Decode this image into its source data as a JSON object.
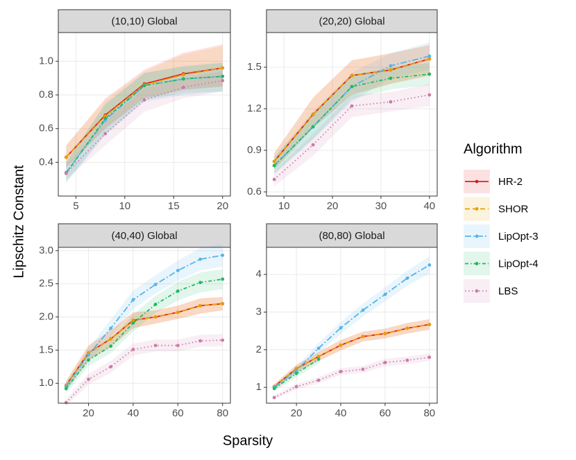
{
  "ylabel": "Lipschitz Constant",
  "xlabel": "Sparsity",
  "legend": {
    "title": "Algorithm"
  },
  "chart_data": [
    {
      "type": "line",
      "title": "(10,10) Global",
      "x": [
        4,
        8,
        12,
        16,
        20
      ],
      "xlim": [
        3.2,
        20.8
      ],
      "xticks": [
        5,
        10,
        15,
        20
      ],
      "ylim": [
        0.2,
        1.17
      ],
      "yticks": [
        0.4,
        0.6,
        0.8,
        {
          "value": 1.0,
          "label": "1.0"
        }
      ],
      "grid": true,
      "series": [
        {
          "name": "HR-2",
          "color": "#e41a1c",
          "dash": "solid",
          "values": [
            0.43,
            0.68,
            0.865,
            0.925,
            0.96
          ],
          "lower": [
            0.37,
            0.6,
            0.78,
            0.83,
            0.85
          ],
          "upper": [
            0.5,
            0.78,
            0.95,
            1.05,
            1.1
          ]
        },
        {
          "name": "SHOR",
          "color": "#e69f00",
          "dash": "dashed",
          "values": [
            0.43,
            0.675,
            0.86,
            0.92,
            0.96
          ],
          "lower": [
            0.37,
            0.6,
            0.78,
            0.83,
            0.85
          ],
          "upper": [
            0.5,
            0.77,
            0.94,
            1.04,
            1.09
          ]
        },
        {
          "name": "LipOpt-3",
          "color": "#56b4e9",
          "dash": "longdashdot",
          "values": [
            0.34,
            0.65,
            0.855,
            0.895,
            0.91
          ],
          "lower": [
            0.28,
            0.56,
            0.76,
            0.8,
            0.82
          ],
          "upper": [
            0.4,
            0.74,
            0.93,
            0.97,
            0.99
          ]
        },
        {
          "name": "LipOpt-4",
          "color": "#1fb863",
          "dash": "dotdash",
          "values": [
            0.335,
            0.66,
            0.855,
            0.895,
            0.91
          ],
          "lower": [
            0.28,
            0.57,
            0.77,
            0.81,
            0.82
          ],
          "upper": [
            0.4,
            0.75,
            0.93,
            0.97,
            0.99
          ]
        },
        {
          "name": "LBS",
          "color": "#cc79a7",
          "dash": "dotted",
          "values": [
            0.335,
            0.57,
            0.77,
            0.845,
            0.885
          ],
          "lower": [
            0.3,
            0.5,
            0.7,
            0.78,
            0.82
          ],
          "upper": [
            0.38,
            0.64,
            0.84,
            0.9,
            0.94
          ]
        }
      ]
    },
    {
      "type": "line",
      "title": "(20,20) Global",
      "x": [
        8,
        16,
        24,
        32,
        40
      ],
      "xlim": [
        6.4,
        41.6
      ],
      "xticks": [
        10,
        20,
        30,
        40
      ],
      "ylim": [
        0.57,
        1.75
      ],
      "yticks": [
        0.6,
        0.9,
        1.2,
        1.5
      ],
      "grid": true,
      "series": [
        {
          "name": "HR-2",
          "color": "#e41a1c",
          "dash": "solid",
          "values": [
            0.82,
            1.16,
            1.44,
            1.48,
            1.56
          ],
          "lower": [
            0.76,
            1.06,
            1.3,
            1.38,
            1.44
          ],
          "upper": [
            0.88,
            1.28,
            1.55,
            1.6,
            1.66
          ]
        },
        {
          "name": "SHOR",
          "color": "#e69f00",
          "dash": "dashed",
          "values": [
            0.82,
            1.16,
            1.44,
            1.48,
            1.56
          ],
          "lower": [
            0.76,
            1.06,
            1.3,
            1.38,
            1.44
          ],
          "upper": [
            0.88,
            1.28,
            1.55,
            1.6,
            1.66
          ]
        },
        {
          "name": "LipOpt-3",
          "color": "#56b4e9",
          "dash": "longdashdot",
          "values": [
            0.79,
            1.07,
            1.36,
            1.51,
            1.58
          ],
          "lower": [
            0.73,
            0.98,
            1.25,
            1.42,
            1.48
          ],
          "upper": [
            0.85,
            1.18,
            1.46,
            1.6,
            1.68
          ]
        },
        {
          "name": "LipOpt-4",
          "color": "#1fb863",
          "dash": "dotdash",
          "values": [
            0.79,
            1.07,
            1.36,
            1.42,
            1.45
          ],
          "lower": [
            0.73,
            0.98,
            1.27,
            1.34,
            1.37
          ],
          "upper": [
            0.85,
            1.16,
            1.44,
            1.5,
            1.53
          ]
        },
        {
          "name": "LBS",
          "color": "#cc79a7",
          "dash": "dotted",
          "values": [
            0.69,
            0.94,
            1.22,
            1.25,
            1.3
          ],
          "lower": [
            0.64,
            0.86,
            1.14,
            1.18,
            1.22
          ],
          "upper": [
            0.75,
            1.02,
            1.3,
            1.32,
            1.38
          ]
        }
      ]
    },
    {
      "type": "line",
      "title": "(40,40) Global",
      "x": [
        10,
        20,
        30,
        40,
        50,
        60,
        70,
        80
      ],
      "xlim": [
        6.5,
        83.5
      ],
      "xticks": [
        20,
        40,
        60,
        80
      ],
      "ylim": [
        0.7,
        3.05
      ],
      "yticks": [
        {
          "value": 1.0,
          "label": "1.0"
        },
        1.5,
        {
          "value": 2.0,
          "label": "2.0"
        },
        2.5,
        {
          "value": 3.0,
          "label": "3.0"
        }
      ],
      "grid": true,
      "series": [
        {
          "name": "HR-2",
          "color": "#e41a1c",
          "dash": "solid",
          "values": [
            0.97,
            1.46,
            1.67,
            1.95,
            2.0,
            2.07,
            2.17,
            2.2
          ],
          "lower": [
            0.9,
            1.35,
            1.55,
            1.83,
            1.9,
            1.97,
            2.05,
            2.1
          ],
          "upper": [
            1.04,
            1.57,
            1.8,
            2.07,
            2.1,
            2.17,
            2.28,
            2.3
          ]
        },
        {
          "name": "SHOR",
          "color": "#e69f00",
          "dash": "dashed",
          "values": [
            0.97,
            1.46,
            1.67,
            1.95,
            2.0,
            2.07,
            2.17,
            2.2
          ],
          "lower": [
            0.9,
            1.35,
            1.55,
            1.83,
            1.9,
            1.97,
            2.05,
            2.1
          ],
          "upper": [
            1.04,
            1.57,
            1.8,
            2.07,
            2.1,
            2.17,
            2.28,
            2.3
          ]
        },
        {
          "name": "LipOpt-3",
          "color": "#56b4e9",
          "dash": "longdashdot",
          "values": [
            0.95,
            1.43,
            1.83,
            2.26,
            2.49,
            2.7,
            2.87,
            2.93
          ],
          "lower": [
            0.88,
            1.33,
            1.7,
            2.12,
            2.35,
            2.55,
            2.7,
            2.76
          ],
          "upper": [
            1.02,
            1.53,
            1.96,
            2.4,
            2.63,
            2.85,
            3.04,
            3.1
          ]
        },
        {
          "name": "LipOpt-4",
          "color": "#1fb863",
          "dash": "dotdash",
          "values": [
            0.92,
            1.35,
            1.56,
            1.91,
            2.19,
            2.39,
            2.52,
            2.57
          ],
          "lower": [
            0.85,
            1.26,
            1.46,
            1.78,
            2.06,
            2.25,
            2.37,
            2.42
          ],
          "upper": [
            0.99,
            1.44,
            1.66,
            2.04,
            2.32,
            2.53,
            2.67,
            2.72
          ]
        },
        {
          "name": "LBS",
          "color": "#cc79a7",
          "dash": "dotted",
          "values": [
            0.71,
            1.06,
            1.25,
            1.51,
            1.57,
            1.57,
            1.64,
            1.65
          ],
          "lower": [
            0.66,
            0.98,
            1.16,
            1.42,
            1.48,
            1.48,
            1.55,
            1.56
          ],
          "upper": [
            0.76,
            1.14,
            1.34,
            1.6,
            1.66,
            1.66,
            1.73,
            1.74
          ]
        }
      ]
    },
    {
      "type": "line",
      "title": "(80,80) Global",
      "x": [
        10,
        20,
        30,
        40,
        50,
        60,
        70,
        80
      ],
      "xlim": [
        6.5,
        83.5
      ],
      "xticks": [
        20,
        40,
        60,
        80
      ],
      "ylim": [
        0.58,
        4.72
      ],
      "yticks": [
        1,
        2,
        3,
        4
      ],
      "grid": true,
      "series": [
        {
          "name": "HR-2",
          "color": "#e41a1c",
          "dash": "solid",
          "values": [
            1.02,
            1.5,
            1.82,
            2.12,
            2.35,
            2.43,
            2.57,
            2.67
          ],
          "lower": [
            0.95,
            1.4,
            1.7,
            1.98,
            2.22,
            2.3,
            2.43,
            2.53
          ],
          "upper": [
            1.09,
            1.6,
            1.94,
            2.26,
            2.48,
            2.56,
            2.71,
            2.81
          ]
        },
        {
          "name": "SHOR",
          "color": "#e69f00",
          "dash": "dashed",
          "values": [
            1.02,
            1.5,
            1.82,
            2.12,
            2.35,
            2.43,
            2.57,
            2.67
          ],
          "lower": [
            0.95,
            1.4,
            1.7,
            1.98,
            2.22,
            2.3,
            2.43,
            2.53
          ],
          "upper": [
            1.09,
            1.6,
            1.94,
            2.26,
            2.48,
            2.56,
            2.71,
            2.81
          ]
        },
        {
          "name": "LipOpt-3",
          "color": "#56b4e9",
          "dash": "longdashdot",
          "values": [
            1.0,
            1.45,
            2.04,
            2.58,
            3.05,
            3.47,
            3.9,
            4.25
          ],
          "lower": [
            0.93,
            1.35,
            1.9,
            2.42,
            2.88,
            3.28,
            3.7,
            4.02
          ],
          "upper": [
            1.07,
            1.55,
            2.18,
            2.74,
            3.22,
            3.66,
            4.1,
            4.48
          ]
        },
        {
          "name": "LipOpt-4",
          "color": "#1fb863",
          "dash": "dotdash",
          "values": [
            0.97,
            1.37,
            1.75,
            null,
            null,
            null,
            null,
            null
          ],
          "lower": [
            0.9,
            1.27,
            1.63,
            null,
            null,
            null,
            null,
            null
          ],
          "upper": [
            1.04,
            1.47,
            1.87,
            null,
            null,
            null,
            null,
            null
          ]
        },
        {
          "name": "LBS",
          "color": "#cc79a7",
          "dash": "dotted",
          "values": [
            0.73,
            1.02,
            1.19,
            1.42,
            1.48,
            1.66,
            1.72,
            1.8
          ],
          "lower": [
            0.68,
            0.95,
            1.11,
            1.33,
            1.39,
            1.56,
            1.62,
            1.7
          ],
          "upper": [
            0.78,
            1.09,
            1.27,
            1.51,
            1.57,
            1.76,
            1.82,
            1.9
          ]
        }
      ]
    }
  ]
}
